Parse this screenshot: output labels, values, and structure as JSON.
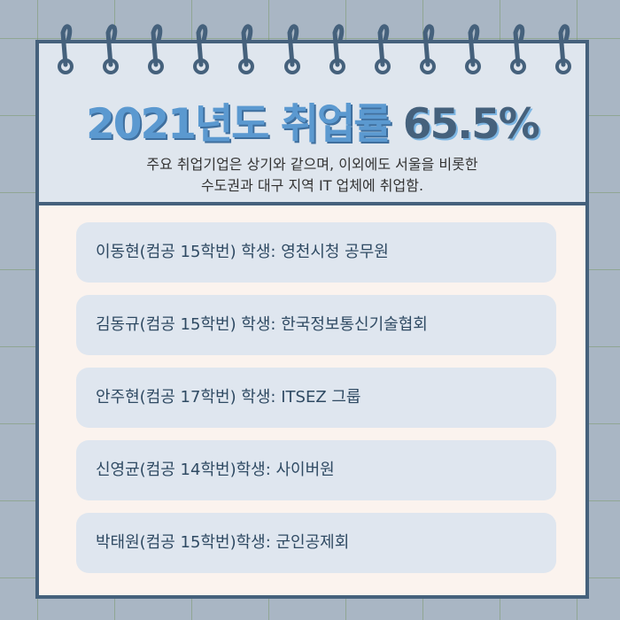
{
  "title": {
    "part1": "2021년도 취업률",
    "part2": "65.5%"
  },
  "subtitle": {
    "line1": "주요 취업기업은 상기와 같으며, 이외에도 서울을 비롯한",
    "line2": "수도권과 대구 지역 IT 업체에 취업함."
  },
  "items": [
    {
      "label": "이동현(컴공 15학번) 학생: 영천시청 공무원"
    },
    {
      "label": "김동규(컴공 15학번) 학생: 한국정보통신기술협회"
    },
    {
      "label": "안주현(컴공 17학번) 학생: ITSEZ 그룹"
    },
    {
      "label": "신영균(컴공 14학번)학생: 사이버원"
    },
    {
      "label": "박태원(컴공 15학번)학생: 군인공제회"
    }
  ],
  "colors": {
    "frame": "#45617c",
    "accent": "#5b99d0",
    "header_bg": "#dfe6ee",
    "body_bg": "#fbf3ee"
  }
}
